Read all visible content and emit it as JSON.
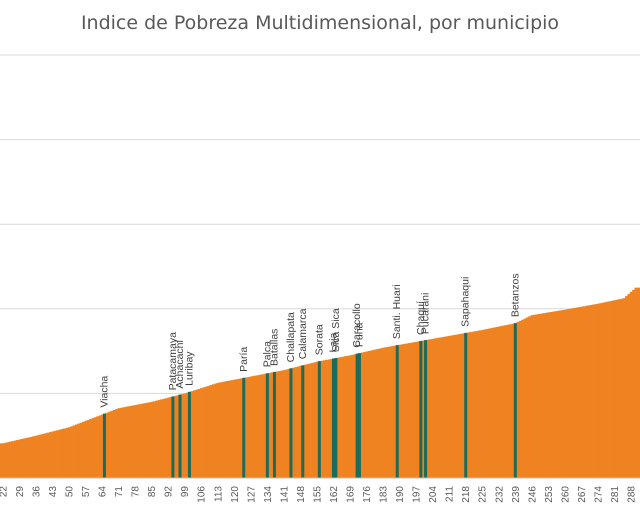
{
  "chart_data": {
    "type": "bar",
    "title": "Indice de Pobreza Multidimensional, por municipio",
    "xlabel": "",
    "ylabel": "",
    "x_range": [
      22,
      290
    ],
    "ylim": [
      0,
      1
    ],
    "grid": true,
    "legend": "none",
    "x_tick_labels": [
      "22",
      "29",
      "36",
      "43",
      "50",
      "57",
      "64",
      "71",
      "78",
      "85",
      "92",
      "99",
      "106",
      "113",
      "120",
      "127",
      "134",
      "141",
      "148",
      "155",
      "162",
      "169",
      "176",
      "183",
      "190",
      "197",
      "204",
      "211",
      "218",
      "225",
      "232",
      "239",
      "246",
      "253",
      "260",
      "267",
      "274",
      "281",
      "288"
    ],
    "series_color": "#F08321",
    "highlight_color": "#1E6B5A",
    "profile": [
      {
        "x": 22,
        "y": 0.082
      },
      {
        "x": 36,
        "y": 0.1
      },
      {
        "x": 50,
        "y": 0.12
      },
      {
        "x": 64,
        "y": 0.15
      },
      {
        "x": 71,
        "y": 0.165
      },
      {
        "x": 85,
        "y": 0.18
      },
      {
        "x": 99,
        "y": 0.2
      },
      {
        "x": 113,
        "y": 0.225
      },
      {
        "x": 127,
        "y": 0.24
      },
      {
        "x": 141,
        "y": 0.255
      },
      {
        "x": 155,
        "y": 0.275
      },
      {
        "x": 169,
        "y": 0.29
      },
      {
        "x": 183,
        "y": 0.308
      },
      {
        "x": 197,
        "y": 0.322
      },
      {
        "x": 211,
        "y": 0.336
      },
      {
        "x": 225,
        "y": 0.35
      },
      {
        "x": 239,
        "y": 0.366
      },
      {
        "x": 246,
        "y": 0.385
      },
      {
        "x": 260,
        "y": 0.398
      },
      {
        "x": 274,
        "y": 0.412
      },
      {
        "x": 285,
        "y": 0.425
      },
      {
        "x": 290,
        "y": 0.45
      }
    ],
    "highlighted": [
      {
        "name": "Viacha",
        "x": 65
      },
      {
        "name": "Patacamaya",
        "x": 94
      },
      {
        "name": "Achacachi",
        "x": 97
      },
      {
        "name": "Luribay",
        "x": 101
      },
      {
        "name": "Paría",
        "x": 124
      },
      {
        "name": "Palca",
        "x": 134
      },
      {
        "name": "Batallas",
        "x": 137
      },
      {
        "name": "Challapata",
        "x": 144
      },
      {
        "name": "Calamarca",
        "x": 149
      },
      {
        "name": "Sorata",
        "x": 156
      },
      {
        "name": "Laja",
        "x": 162
      },
      {
        "name": "Sica Sica",
        "x": 163
      },
      {
        "name": "Caracollo",
        "x": 172
      },
      {
        "name": "Puna",
        "x": 173
      },
      {
        "name": "Santi. Huari",
        "x": 189
      },
      {
        "name": "Chaquí",
        "x": 199
      },
      {
        "name": "Pucarani",
        "x": 201
      },
      {
        "name": "Sapahaqui",
        "x": 218
      },
      {
        "name": "Betanzos",
        "x": 239
      }
    ]
  }
}
